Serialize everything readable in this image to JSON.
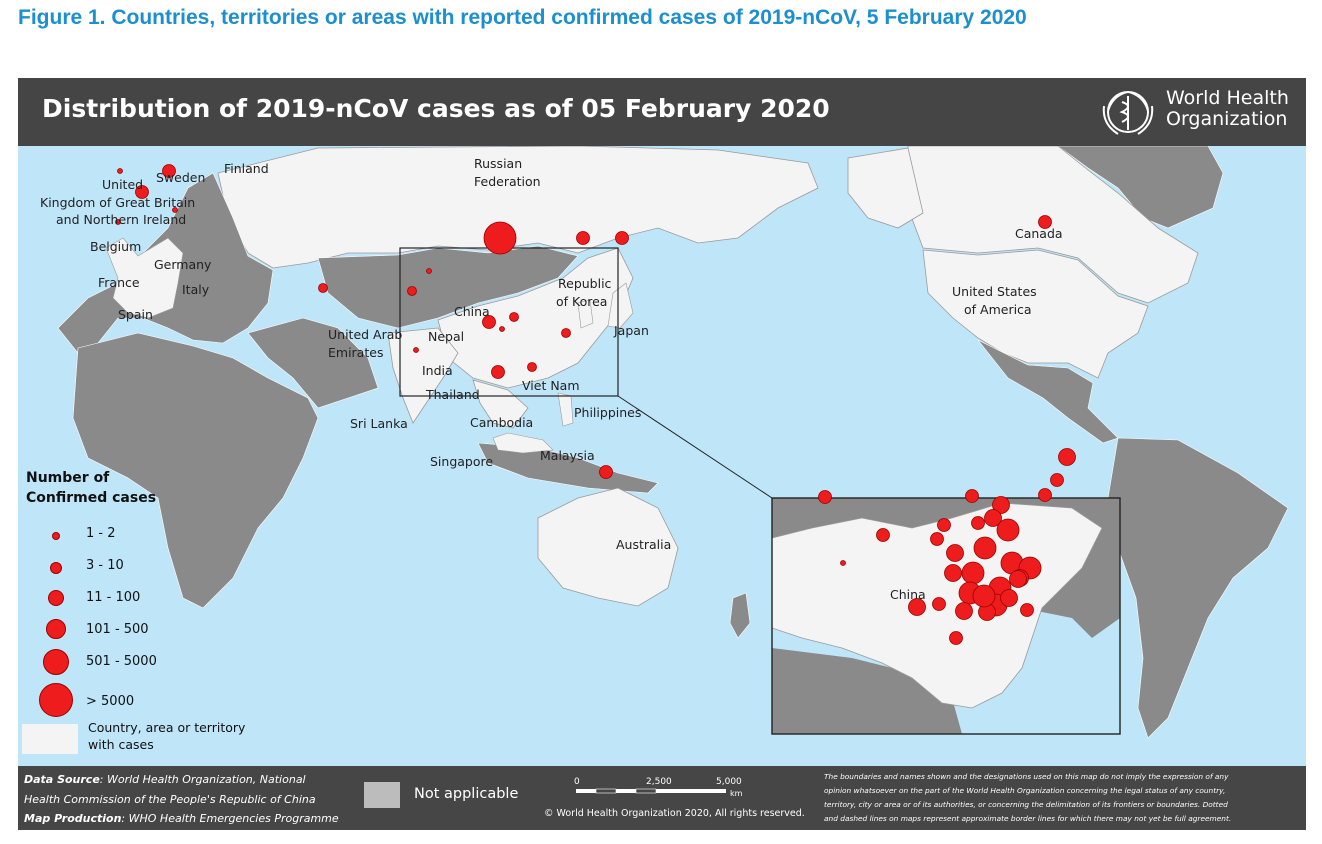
{
  "figure_title": "Figure 1. Countries, territories or areas with reported confirmed cases of 2019-nCoV, 5 February 2020",
  "map": {
    "title": "Distribution of 2019-nCoV cases as of 05 February 2020",
    "organization": [
      "World Health",
      "Organization"
    ],
    "colors": {
      "ocean": "#bfe5f8",
      "land_not_applicable": "#8a8a8a",
      "land_with_cases": "#f4f4f4",
      "marker": "#ee1c1c",
      "header": "#454545"
    }
  },
  "labels": {
    "finland": "Finland",
    "sweden": "Sweden",
    "uk": [
      "United",
      "Kingdom of Great Britain",
      "and Northern Ireland"
    ],
    "belgium": "Belgium",
    "germany": "Germany",
    "france": "France",
    "italy": "Italy",
    "spain": "Spain",
    "russia": [
      "Russian",
      "Federation"
    ],
    "uae": [
      "United Arab",
      "Emirates"
    ],
    "nepal": "Nepal",
    "india": "India",
    "sri_lanka": "Sri Lanka",
    "china": "China",
    "korea": [
      "Republic",
      "of Korea"
    ],
    "japan": "Japan",
    "thailand": "Thailand",
    "viet_nam": "Viet Nam",
    "cambodia": "Cambodia",
    "philippines": "Philippines",
    "singapore": "Singapore",
    "malaysia": "Malaysia",
    "australia": "Australia",
    "canada": "Canada",
    "usa": [
      "United States",
      "of America"
    ],
    "inset_china": "China"
  },
  "legend": {
    "title": [
      "Number of",
      "Confirmed cases"
    ],
    "classes": [
      "1 - 2",
      "3 - 10",
      "11 - 100",
      "101 - 500",
      "501 - 5000",
      "> 5000"
    ],
    "with_cases": [
      "Country, area or territory",
      "with cases"
    ],
    "not_applicable": "Not applicable"
  },
  "footer": {
    "data_source_label": "Data Source",
    "data_source": ": World Health Organization, National",
    "data_source_2": "Health Commission of the People's Republic of China",
    "map_production_label": "Map Production",
    "map_production": ": WHO Health Emergencies Programme",
    "scale_ticks": [
      "0",
      "2,500",
      "5,000"
    ],
    "scale_unit": "km",
    "copyright": "© World Health Organization 2020, All rights reserved.",
    "disclaimer": [
      "The boundaries and names shown and the designations used on this map do not imply the expression of any",
      "opinion whatsoever on the part of the World Health Organization concerning the legal status of any country,",
      "territory, city or area or of its authorities, or concerning the delimitation of its frontiers or boundaries. Dotted",
      "and dashed lines on maps represent approximate border lines for which there may not yet be full agreement."
    ]
  }
}
